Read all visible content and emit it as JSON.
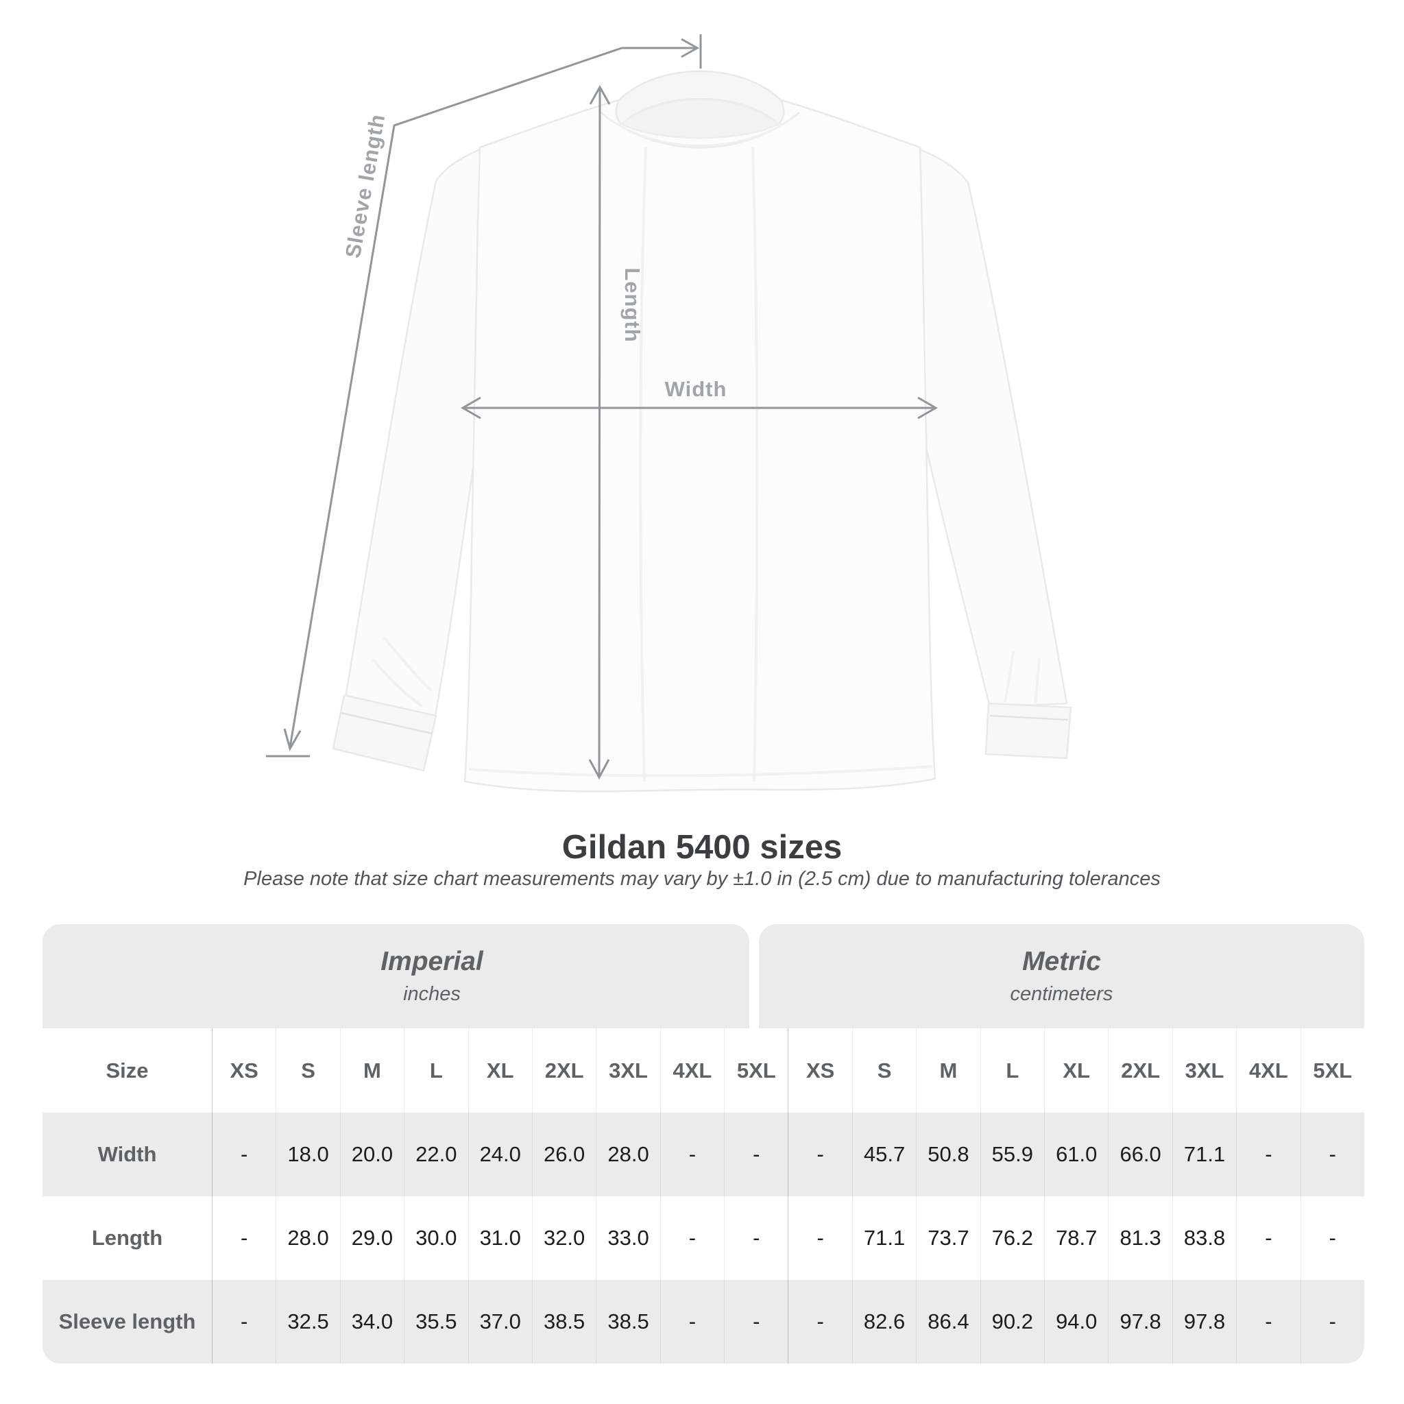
{
  "diagram": {
    "sleeve_length_label": "Sleeve length",
    "length_label": "Length",
    "width_label": "Width",
    "line_color": "#91969a",
    "label_color": "#a0a5a8"
  },
  "heading": {
    "title": "Gildan 5400 sizes",
    "subtitle": "Please note that size chart measurements may vary by ±1.0 in (2.5 cm) due to manufacturing tolerances"
  },
  "table": {
    "unit_groups": [
      {
        "label": "Imperial",
        "sublabel": "inches"
      },
      {
        "label": "Metric",
        "sublabel": "centimeters"
      }
    ],
    "size_column_header": "Size",
    "sizes": [
      "XS",
      "S",
      "M",
      "L",
      "XL",
      "2XL",
      "3XL",
      "4XL",
      "5XL"
    ],
    "rows": [
      {
        "label": "Width",
        "imperial": [
          "-",
          "18.0",
          "20.0",
          "22.0",
          "24.0",
          "26.0",
          "28.0",
          "-",
          "-"
        ],
        "metric": [
          "-",
          "45.7",
          "50.8",
          "55.9",
          "61.0",
          "66.0",
          "71.1",
          "-",
          "-"
        ]
      },
      {
        "label": "Length",
        "imperial": [
          "-",
          "28.0",
          "29.0",
          "30.0",
          "31.0",
          "32.0",
          "33.0",
          "-",
          "-"
        ],
        "metric": [
          "-",
          "71.1",
          "73.7",
          "76.2",
          "78.7",
          "81.3",
          "83.8",
          "-",
          "-"
        ]
      },
      {
        "label": "Sleeve length",
        "imperial": [
          "-",
          "32.5",
          "34.0",
          "35.5",
          "37.0",
          "38.5",
          "38.5",
          "-",
          "-"
        ],
        "metric": [
          "-",
          "82.6",
          "86.4",
          "90.2",
          "94.0",
          "97.8",
          "97.8",
          "-",
          "-"
        ]
      }
    ]
  },
  "chart_data": {
    "type": "table",
    "title": "Gildan 5400 sizes",
    "note": "Measurements may vary by ±1.0 in (2.5 cm)",
    "unit_groups": [
      "Imperial (inches)",
      "Metric (centimeters)"
    ],
    "columns": [
      "Size",
      "XS",
      "S",
      "M",
      "L",
      "XL",
      "2XL",
      "3XL",
      "4XL",
      "5XL",
      "XS",
      "S",
      "M",
      "L",
      "XL",
      "2XL",
      "3XL",
      "4XL",
      "5XL"
    ],
    "rows": [
      [
        "Width",
        "-",
        "18.0",
        "20.0",
        "22.0",
        "24.0",
        "26.0",
        "28.0",
        "-",
        "-",
        "-",
        "45.7",
        "50.8",
        "55.9",
        "61.0",
        "66.0",
        "71.1",
        "-",
        "-"
      ],
      [
        "Length",
        "-",
        "28.0",
        "29.0",
        "30.0",
        "31.0",
        "32.0",
        "33.0",
        "-",
        "-",
        "-",
        "71.1",
        "73.7",
        "76.2",
        "78.7",
        "81.3",
        "83.8",
        "-",
        "-"
      ],
      [
        "Sleeve length",
        "-",
        "32.5",
        "34.0",
        "35.5",
        "37.0",
        "38.5",
        "38.5",
        "-",
        "-",
        "-",
        "82.6",
        "86.4",
        "90.2",
        "94.0",
        "97.8",
        "97.8",
        "-",
        "-"
      ]
    ]
  },
  "colors": {
    "table_band": "#ebebeb",
    "value_text": "#1c1c1c",
    "header_text": "#5d6266",
    "title_text": "#3b3e41",
    "diagram_line": "#91969a",
    "diagram_label": "#a0a5a8"
  }
}
